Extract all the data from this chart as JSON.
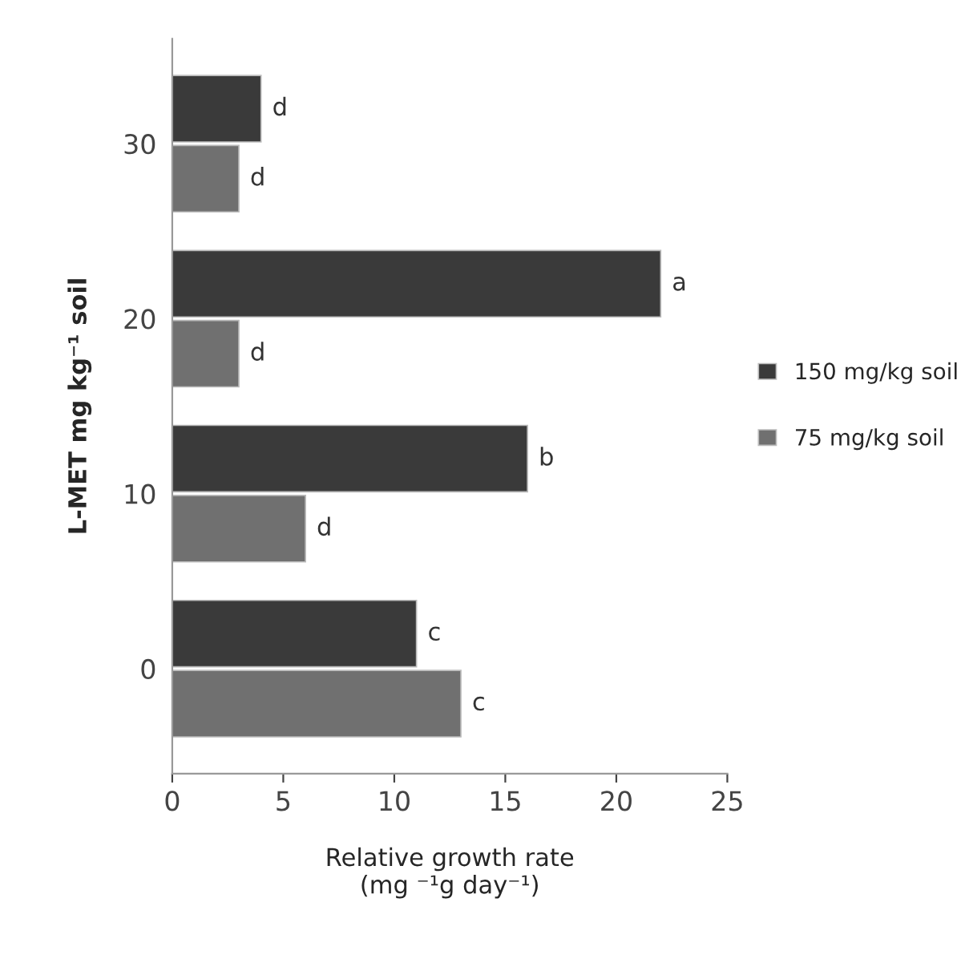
{
  "chart_data": {
    "type": "bar",
    "orientation": "horizontal",
    "xlabel": "Relative growth rate\n(mg ⁻¹g day⁻¹)",
    "ylabel": "L-MET mg kg⁻¹ soil",
    "categories": [
      "30",
      "20",
      "10",
      "0"
    ],
    "series": [
      {
        "name": "150 mg/kg soil",
        "color": "#3a3a3a",
        "values": [
          4,
          22,
          16,
          11
        ],
        "value_labels": [
          "d",
          "a",
          "b",
          "c"
        ]
      },
      {
        "name": "75 mg/kg soil",
        "color": "#707070",
        "values": [
          3,
          3,
          6,
          13
        ],
        "value_labels": [
          "d",
          "d",
          "d",
          "c"
        ]
      }
    ],
    "xlim": [
      0,
      25
    ],
    "xticks": [
      0,
      5,
      10,
      15,
      20,
      25
    ],
    "grid": false,
    "legend": "right"
  }
}
